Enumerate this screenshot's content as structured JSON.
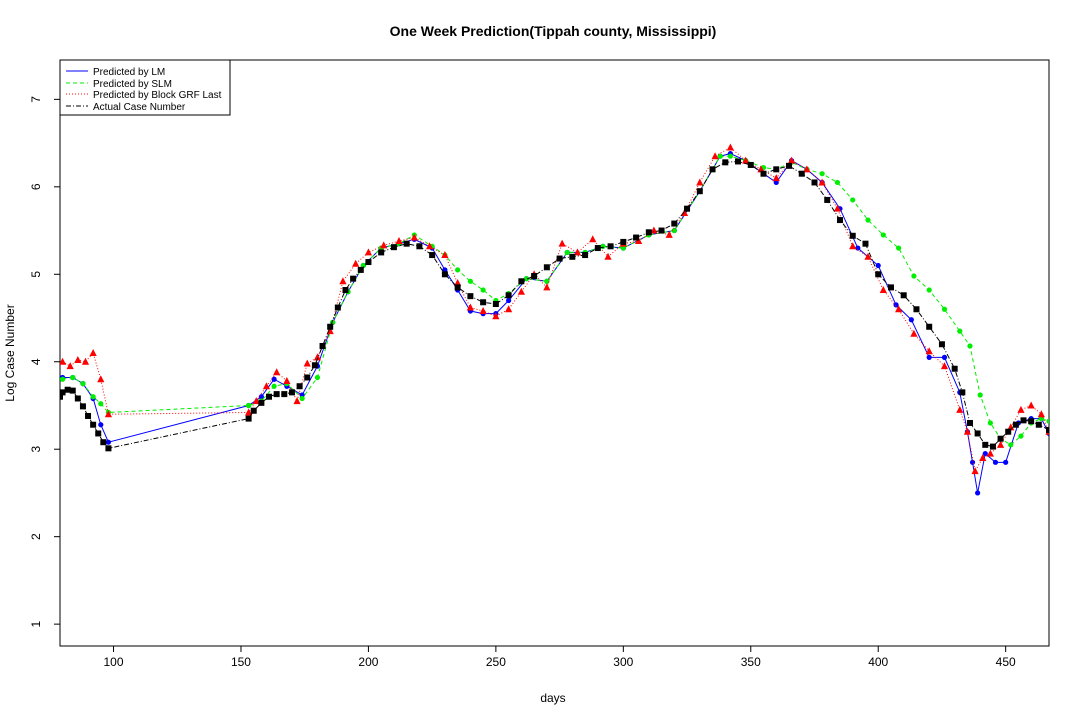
{
  "chart_data": {
    "type": "line",
    "title": "One Week Prediction(Tippah county, Mississippi)",
    "xlabel": "days",
    "ylabel": "Log Case Number",
    "xlim": [
      79,
      467
    ],
    "ylim": [
      0.75,
      7.45
    ],
    "x_ticks": [
      100,
      150,
      200,
      250,
      300,
      350,
      400,
      450
    ],
    "x_tick_labels": [
      "100",
      "150",
      "200",
      "250",
      "300",
      "350",
      "400",
      "450"
    ],
    "y_ticks": [
      1,
      2,
      3,
      4,
      5,
      6,
      7
    ],
    "y_tick_labels": [
      "1",
      "2",
      "3",
      "4",
      "5",
      "6",
      "7"
    ],
    "grid": false,
    "legend": {
      "position": "top-left",
      "entries": [
        "Predicted by LM",
        "Predicted by SLM",
        "Predicted by Block GRF Last",
        "Actual Case Number"
      ]
    },
    "series": [
      {
        "name": "Actual Case Number",
        "color": "#000000",
        "line_style": "dotdash",
        "marker": "square",
        "x": [
          79,
          80,
          82,
          84,
          86,
          88,
          90,
          92,
          94,
          96,
          98,
          153,
          155,
          158,
          161,
          164,
          167,
          170,
          173,
          176,
          179,
          182,
          185,
          188,
          191,
          194,
          197,
          200,
          205,
          210,
          215,
          220,
          225,
          230,
          235,
          240,
          245,
          250,
          255,
          260,
          265,
          270,
          275,
          280,
          285,
          290,
          295,
          300,
          305,
          310,
          315,
          320,
          325,
          330,
          335,
          340,
          345,
          350,
          355,
          360,
          365,
          370,
          375,
          380,
          385,
          390,
          395,
          400,
          405,
          410,
          415,
          420,
          425,
          430,
          433,
          436,
          439,
          442,
          445,
          448,
          451,
          454,
          457,
          460,
          463,
          467
        ],
        "y": [
          3.6,
          3.65,
          3.68,
          3.67,
          3.58,
          3.49,
          3.38,
          3.28,
          3.18,
          3.08,
          3.01,
          3.35,
          3.44,
          3.53,
          3.6,
          3.63,
          3.63,
          3.65,
          3.72,
          3.82,
          3.96,
          4.18,
          4.4,
          4.62,
          4.82,
          4.95,
          5.05,
          5.14,
          5.25,
          5.31,
          5.35,
          5.32,
          5.22,
          5.0,
          4.85,
          4.75,
          4.68,
          4.66,
          4.76,
          4.92,
          4.98,
          5.08,
          5.18,
          5.2,
          5.22,
          5.3,
          5.32,
          5.37,
          5.42,
          5.48,
          5.5,
          5.58,
          5.75,
          5.95,
          6.2,
          6.28,
          6.29,
          6.25,
          6.15,
          6.2,
          6.24,
          6.15,
          6.05,
          5.85,
          5.62,
          5.44,
          5.35,
          5.0,
          4.85,
          4.76,
          4.6,
          4.4,
          4.2,
          3.92,
          3.65,
          3.3,
          3.18,
          3.05,
          3.03,
          3.12,
          3.2,
          3.28,
          3.33,
          3.32,
          3.28,
          3.22
        ]
      },
      {
        "name": "Predicted by LM",
        "color": "#0000ff",
        "line_style": "solid",
        "marker": "circle",
        "x": [
          80,
          84,
          88,
          92,
          95,
          98,
          153,
          158,
          163,
          168,
          174,
          180,
          186,
          192,
          198,
          205,
          212,
          218,
          225,
          230,
          235,
          240,
          245,
          250,
          255,
          262,
          270,
          278,
          285,
          292,
          300,
          310,
          320,
          330,
          338,
          342,
          348,
          355,
          360,
          366,
          372,
          378,
          385,
          392,
          400,
          407,
          413,
          420,
          426,
          432,
          435,
          437,
          439,
          442,
          446,
          450,
          455,
          460,
          464,
          467
        ],
        "y": [
          3.82,
          3.82,
          3.75,
          3.58,
          3.28,
          3.08,
          3.5,
          3.6,
          3.8,
          3.72,
          3.62,
          3.95,
          4.45,
          4.8,
          5.1,
          5.3,
          5.35,
          5.4,
          5.3,
          5.05,
          4.82,
          4.58,
          4.55,
          4.55,
          4.7,
          4.95,
          4.92,
          5.25,
          5.25,
          5.32,
          5.3,
          5.45,
          5.5,
          5.95,
          6.35,
          6.38,
          6.3,
          6.15,
          6.05,
          6.3,
          6.2,
          6.05,
          5.75,
          5.3,
          5.1,
          4.65,
          4.48,
          4.05,
          4.05,
          3.65,
          3.2,
          2.85,
          2.5,
          2.95,
          2.85,
          2.85,
          3.3,
          3.35,
          3.35,
          3.18
        ]
      },
      {
        "name": "Predicted by SLM",
        "color": "#00ee00",
        "line_style": "dashed",
        "marker": "circle",
        "x": [
          80,
          84,
          88,
          92,
          95,
          98,
          153,
          158,
          163,
          168,
          174,
          180,
          186,
          192,
          198,
          205,
          212,
          218,
          225,
          230,
          235,
          240,
          245,
          250,
          255,
          262,
          270,
          278,
          285,
          292,
          300,
          310,
          320,
          330,
          338,
          342,
          348,
          355,
          360,
          366,
          372,
          378,
          384,
          390,
          396,
          402,
          408,
          414,
          420,
          426,
          432,
          436,
          440,
          444,
          448,
          452,
          456,
          460,
          464,
          467
        ],
        "y": [
          3.8,
          3.82,
          3.75,
          3.6,
          3.52,
          3.42,
          3.5,
          3.55,
          3.72,
          3.75,
          3.58,
          3.82,
          4.45,
          4.8,
          5.1,
          5.3,
          5.35,
          5.45,
          5.32,
          5.22,
          5.05,
          4.92,
          4.82,
          4.7,
          4.78,
          4.95,
          4.92,
          5.25,
          5.25,
          5.32,
          5.3,
          5.45,
          5.5,
          5.95,
          6.35,
          6.35,
          6.3,
          6.22,
          6.2,
          6.28,
          6.2,
          6.15,
          6.05,
          5.85,
          5.62,
          5.45,
          5.3,
          4.98,
          4.82,
          4.6,
          4.35,
          4.18,
          3.62,
          3.3,
          3.12,
          3.05,
          3.15,
          3.3,
          3.35,
          3.32
        ]
      },
      {
        "name": "Predicted by Block GRF Last",
        "color": "#ff0000",
        "line_style": "dotted",
        "marker": "triangle",
        "x": [
          80,
          83,
          86,
          89,
          92,
          95,
          98,
          153,
          156,
          160,
          164,
          168,
          172,
          176,
          180,
          185,
          190,
          195,
          200,
          206,
          212,
          218,
          224,
          230,
          235,
          240,
          245,
          250,
          255,
          260,
          265,
          270,
          276,
          282,
          288,
          294,
          300,
          306,
          312,
          318,
          324,
          330,
          336,
          342,
          348,
          354,
          360,
          366,
          372,
          378,
          384,
          390,
          396,
          402,
          408,
          414,
          420,
          426,
          432,
          435,
          438,
          441,
          444,
          448,
          452,
          456,
          460,
          464,
          467
        ],
        "y": [
          4.0,
          3.95,
          4.02,
          4.0,
          4.1,
          3.8,
          3.4,
          3.42,
          3.55,
          3.72,
          3.88,
          3.78,
          3.55,
          3.98,
          4.05,
          4.35,
          4.92,
          5.12,
          5.25,
          5.33,
          5.38,
          5.42,
          5.32,
          5.22,
          4.9,
          4.62,
          4.58,
          4.52,
          4.6,
          4.8,
          5.0,
          4.85,
          5.35,
          5.25,
          5.4,
          5.2,
          5.35,
          5.38,
          5.5,
          5.45,
          5.7,
          6.05,
          6.35,
          6.45,
          6.3,
          6.2,
          6.1,
          6.3,
          6.2,
          6.05,
          5.75,
          5.32,
          5.2,
          4.82,
          4.6,
          4.32,
          4.12,
          3.95,
          3.45,
          3.2,
          2.75,
          2.9,
          2.95,
          3.05,
          3.25,
          3.45,
          3.5,
          3.4,
          3.2
        ]
      }
    ]
  }
}
